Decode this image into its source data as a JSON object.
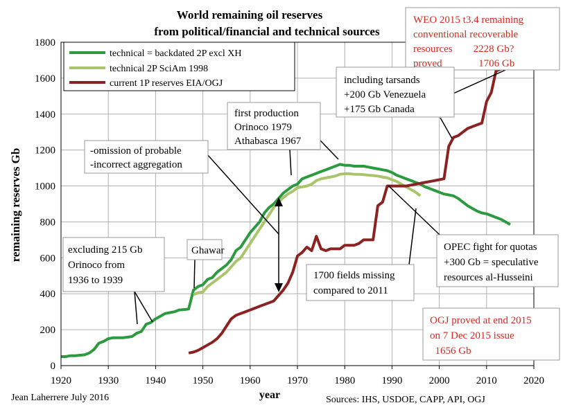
{
  "chart_data": {
    "type": "line",
    "title_line1": "World remaining oil reserves",
    "title_line2": "from political/financial and technical sources",
    "xlabel": "year",
    "ylabel": "remaining reserves Gb",
    "xlim": [
      1920,
      2020
    ],
    "ylim": [
      0,
      1800
    ],
    "x_ticks": [
      1920,
      1930,
      1940,
      1950,
      1960,
      1970,
      1980,
      1990,
      2000,
      2010,
      2020
    ],
    "y_ticks": [
      0,
      200,
      400,
      600,
      800,
      1000,
      1200,
      1400,
      1600,
      1800
    ],
    "grid": true,
    "legend_position": "top-left",
    "series": [
      {
        "name": "technical = backdated 2P excl XH",
        "color": "#2e9a3f",
        "points": [
          [
            1920,
            50
          ],
          [
            1921,
            50
          ],
          [
            1922,
            55
          ],
          [
            1923,
            55
          ],
          [
            1924,
            58
          ],
          [
            1925,
            60
          ],
          [
            1926,
            70
          ],
          [
            1927,
            90
          ],
          [
            1928,
            125
          ],
          [
            1929,
            135
          ],
          [
            1930,
            150
          ],
          [
            1931,
            155
          ],
          [
            1932,
            155
          ],
          [
            1933,
            155
          ],
          [
            1934,
            158
          ],
          [
            1935,
            162
          ],
          [
            1936,
            180
          ],
          [
            1937,
            190
          ],
          [
            1938,
            230
          ],
          [
            1939,
            240
          ],
          [
            1940,
            260
          ],
          [
            1941,
            275
          ],
          [
            1942,
            290
          ],
          [
            1943,
            295
          ],
          [
            1944,
            300
          ],
          [
            1945,
            310
          ],
          [
            1946,
            312
          ],
          [
            1947,
            315
          ],
          [
            1948,
            420
          ],
          [
            1949,
            440
          ],
          [
            1950,
            450
          ],
          [
            1951,
            480
          ],
          [
            1952,
            490
          ],
          [
            1953,
            520
          ],
          [
            1954,
            540
          ],
          [
            1955,
            560
          ],
          [
            1956,
            590
          ],
          [
            1957,
            640
          ],
          [
            1958,
            660
          ],
          [
            1959,
            700
          ],
          [
            1960,
            740
          ],
          [
            1961,
            770
          ],
          [
            1962,
            800
          ],
          [
            1963,
            850
          ],
          [
            1964,
            880
          ],
          [
            1965,
            900
          ],
          [
            1966,
            930
          ],
          [
            1967,
            960
          ],
          [
            1968,
            980
          ],
          [
            1969,
            1000
          ],
          [
            1970,
            1010
          ],
          [
            1971,
            1040
          ],
          [
            1972,
            1050
          ],
          [
            1973,
            1060
          ],
          [
            1974,
            1070
          ],
          [
            1975,
            1080
          ],
          [
            1976,
            1090
          ],
          [
            1977,
            1100
          ],
          [
            1978,
            1110
          ],
          [
            1979,
            1120
          ],
          [
            1980,
            1115
          ],
          [
            1981,
            1115
          ],
          [
            1982,
            1110
          ],
          [
            1983,
            1110
          ],
          [
            1984,
            1110
          ],
          [
            1985,
            1105
          ],
          [
            1986,
            1100
          ],
          [
            1987,
            1095
          ],
          [
            1988,
            1090
          ],
          [
            1989,
            1085
          ],
          [
            1990,
            1075
          ],
          [
            1991,
            1060
          ],
          [
            1992,
            1050
          ],
          [
            1993,
            1040
          ],
          [
            1994,
            1030
          ],
          [
            1995,
            1020
          ],
          [
            1996,
            1010
          ],
          [
            1997,
            995
          ],
          [
            1998,
            985
          ],
          [
            1999,
            975
          ],
          [
            2000,
            965
          ],
          [
            2001,
            955
          ],
          [
            2002,
            950
          ],
          [
            2003,
            945
          ],
          [
            2004,
            930
          ],
          [
            2005,
            910
          ],
          [
            2006,
            890
          ],
          [
            2007,
            875
          ],
          [
            2008,
            860
          ],
          [
            2009,
            850
          ],
          [
            2010,
            845
          ],
          [
            2011,
            835
          ],
          [
            2012,
            825
          ],
          [
            2013,
            815
          ],
          [
            2014,
            800
          ],
          [
            2015,
            785
          ]
        ]
      },
      {
        "name": "technical 2P SciAm 1998",
        "color": "#a9c46b",
        "points": [
          [
            1948,
            395
          ],
          [
            1949,
            405
          ],
          [
            1950,
            410
          ],
          [
            1951,
            440
          ],
          [
            1952,
            460
          ],
          [
            1953,
            480
          ],
          [
            1954,
            500
          ],
          [
            1955,
            520
          ],
          [
            1956,
            550
          ],
          [
            1957,
            580
          ],
          [
            1958,
            600
          ],
          [
            1959,
            640
          ],
          [
            1960,
            680
          ],
          [
            1961,
            720
          ],
          [
            1962,
            760
          ],
          [
            1963,
            800
          ],
          [
            1964,
            840
          ],
          [
            1965,
            880
          ],
          [
            1966,
            910
          ],
          [
            1967,
            935
          ],
          [
            1968,
            955
          ],
          [
            1969,
            970
          ],
          [
            1970,
            990
          ],
          [
            1971,
            995
          ],
          [
            1972,
            1000
          ],
          [
            1973,
            1010
          ],
          [
            1974,
            1030
          ],
          [
            1975,
            1040
          ],
          [
            1976,
            1045
          ],
          [
            1977,
            1050
          ],
          [
            1978,
            1055
          ],
          [
            1979,
            1065
          ],
          [
            1980,
            1068
          ],
          [
            1981,
            1068
          ],
          [
            1982,
            1065
          ],
          [
            1983,
            1065
          ],
          [
            1984,
            1063
          ],
          [
            1985,
            1060
          ],
          [
            1986,
            1058
          ],
          [
            1987,
            1055
          ],
          [
            1988,
            1050
          ],
          [
            1989,
            1045
          ],
          [
            1990,
            1035
          ],
          [
            1991,
            1025
          ],
          [
            1992,
            1010
          ],
          [
            1993,
            995
          ],
          [
            1994,
            980
          ],
          [
            1995,
            965
          ],
          [
            1996,
            945
          ]
        ]
      },
      {
        "name": "current 1P reserves EIA/OGJ",
        "color": "#8b2323",
        "points": [
          [
            1947,
            70
          ],
          [
            1948,
            75
          ],
          [
            1949,
            85
          ],
          [
            1950,
            100
          ],
          [
            1951,
            115
          ],
          [
            1952,
            130
          ],
          [
            1953,
            150
          ],
          [
            1954,
            180
          ],
          [
            1955,
            220
          ],
          [
            1956,
            260
          ],
          [
            1957,
            280
          ],
          [
            1958,
            290
          ],
          [
            1959,
            300
          ],
          [
            1960,
            310
          ],
          [
            1961,
            320
          ],
          [
            1962,
            330
          ],
          [
            1963,
            340
          ],
          [
            1964,
            350
          ],
          [
            1965,
            360
          ],
          [
            1966,
            390
          ],
          [
            1967,
            420
          ],
          [
            1968,
            460
          ],
          [
            1969,
            520
          ],
          [
            1970,
            610
          ],
          [
            1971,
            630
          ],
          [
            1972,
            660
          ],
          [
            1973,
            640
          ],
          [
            1974,
            720
          ],
          [
            1975,
            650
          ],
          [
            1976,
            640
          ],
          [
            1977,
            650
          ],
          [
            1978,
            650
          ],
          [
            1979,
            650
          ],
          [
            1980,
            670
          ],
          [
            1981,
            670
          ],
          [
            1982,
            670
          ],
          [
            1983,
            680
          ],
          [
            1984,
            700
          ],
          [
            1985,
            700
          ],
          [
            1986,
            700
          ],
          [
            1987,
            890
          ],
          [
            1988,
            910
          ],
          [
            1989,
            1000
          ],
          [
            1990,
            1000
          ],
          [
            1991,
            1000
          ],
          [
            1992,
            1000
          ],
          [
            1993,
            1000
          ],
          [
            1994,
            1005
          ],
          [
            1995,
            1010
          ],
          [
            1996,
            1015
          ],
          [
            1997,
            1020
          ],
          [
            1998,
            1025
          ],
          [
            1999,
            1030
          ],
          [
            2000,
            1035
          ],
          [
            2001,
            1040
          ],
          [
            2002,
            1220
          ],
          [
            2003,
            1270
          ],
          [
            2004,
            1280
          ],
          [
            2005,
            1300
          ],
          [
            2006,
            1320
          ],
          [
            2007,
            1330
          ],
          [
            2008,
            1340
          ],
          [
            2009,
            1350
          ],
          [
            2010,
            1470
          ],
          [
            2011,
            1520
          ],
          [
            2012,
            1640
          ],
          [
            2013,
            1650
          ],
          [
            2014,
            1655
          ],
          [
            2015,
            1656
          ]
        ]
      }
    ],
    "annotations": {
      "weo": [
        "WEO 2015 t3.4 remaining",
        "conventional recoverable",
        "resources        2228 Gb?",
        "proved              1706 Gb"
      ],
      "tarsands": [
        "including tarsands",
        "+200 Gb Venezuela",
        "+175 Gb Canada"
      ],
      "first_production": [
        "first production",
        "Orinoco 1979",
        "Athabasca 1967"
      ],
      "omission": [
        "-omission of probable",
        "-incorrect aggregation"
      ],
      "ghawar": [
        "Ghawar"
      ],
      "excluding": [
        "excluding 215 Gb",
        "Orinoco from",
        "1936 to 1939"
      ],
      "fields_missing": [
        "1700 fields missing",
        "compared to 2011"
      ],
      "opec": [
        "OPEC fight for quotas",
        "+300 Gb = speculative",
        "resources al-Husseini"
      ],
      "ogj": [
        "OGJ proved at end 2015",
        "on 7 Dec 2015 issue",
        "  1656 Gb"
      ]
    },
    "footer_left": "Jean Laherrere July 2016",
    "footer_right": "Sources: IHS, USDOE, CAPP, API, OGJ"
  }
}
